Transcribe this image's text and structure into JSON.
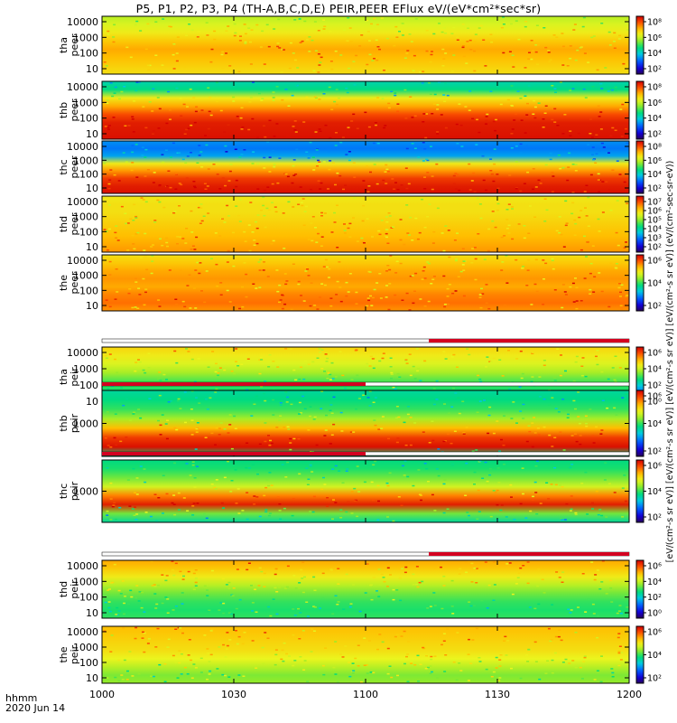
{
  "title": "P5, P1, P2, P3, P4 (TH-A,B,C,D,E) PEIR,PEER EFlux eV/(eV*cm²*sec*sr)",
  "colorbar_unit_label": "[eV/(cm²-s sr eV)] [eV/(cm²-s sr eV)] [eV/(cm²-s sr eV)] [eV/(cm²-s sr eV)] (eV/(cm²-sec-sr-eV))",
  "time_label": "hhmm",
  "date_label": "2020 Jun 14",
  "chart_data": {
    "type": "heatmap",
    "x_unit": "hhmm",
    "xlim": [
      "1000",
      "1200"
    ],
    "x_ticks": [
      "1000",
      "1030",
      "1100",
      "1130",
      "1200"
    ],
    "y_scale": "log",
    "y_unit": "eV",
    "colormap": "rainbow",
    "panels": [
      {
        "name": "tha peer",
        "label_top": "tha",
        "label_bottom": "peer",
        "yticks": [
          "10",
          "100",
          "1000",
          "10000"
        ],
        "cb_ticks": [
          "10²",
          "10⁴",
          "10⁶",
          "10⁸"
        ],
        "flag": "none"
      },
      {
        "name": "thb peer",
        "label_top": "thb",
        "label_bottom": "peer",
        "yticks": [
          "10",
          "100",
          "1000",
          "10000"
        ],
        "cb_ticks": [
          "10²",
          "10⁴",
          "10⁶",
          "10⁸"
        ],
        "flag": "none"
      },
      {
        "name": "thc peer",
        "label_top": "thc",
        "label_bottom": "peer",
        "yticks": [
          "10",
          "100",
          "1000",
          "10000"
        ],
        "cb_ticks": [
          "10²",
          "10⁴",
          "10⁶",
          "10⁸"
        ],
        "flag": "none"
      },
      {
        "name": "thd peer",
        "label_top": "thd",
        "label_bottom": "peer",
        "yticks": [
          "10",
          "100",
          "1000",
          "10000"
        ],
        "cb_ticks": [
          "10²",
          "10³",
          "10⁴",
          "10⁵",
          "10⁶",
          "10⁷"
        ],
        "flag": "none"
      },
      {
        "name": "the peer",
        "label_top": "the",
        "label_bottom": "peer",
        "yticks": [
          "10",
          "100",
          "1000",
          "10000"
        ],
        "cb_ticks": [
          "10²",
          "10⁴",
          "10⁶"
        ],
        "flag": "none"
      },
      {
        "name": "tha peir",
        "label_top": "tha",
        "label_bottom": "peir",
        "yticks": [
          "10",
          "100",
          "1000",
          "10000"
        ],
        "cb_ticks": [
          "10⁰",
          "10²",
          "10⁴",
          "10⁶"
        ],
        "flag": "right"
      },
      {
        "name": "thb peir",
        "label_top": "thb",
        "label_bottom": "peir",
        "yticks": [
          "1000"
        ],
        "cb_ticks": [
          "10²",
          "10⁴",
          "10⁶"
        ],
        "flag": "left"
      },
      {
        "name": "thc peir",
        "label_top": "thc",
        "label_bottom": "peir",
        "yticks": [
          "1000"
        ],
        "cb_ticks": [
          "10²",
          "10⁴",
          "10⁶"
        ],
        "flag": "left"
      },
      {
        "name": "thd peir",
        "label_top": "thd",
        "label_bottom": "peir",
        "yticks": [
          "10",
          "100",
          "1000",
          "10000"
        ],
        "cb_ticks": [
          "10⁰",
          "10²",
          "10⁴",
          "10⁶"
        ],
        "flag": "right"
      },
      {
        "name": "the peir",
        "label_top": "the",
        "label_bottom": "peir",
        "yticks": [
          "10",
          "100",
          "1000",
          "10000"
        ],
        "cb_ticks": [
          "10²",
          "10⁴",
          "10⁶"
        ],
        "flag": "none"
      }
    ]
  }
}
